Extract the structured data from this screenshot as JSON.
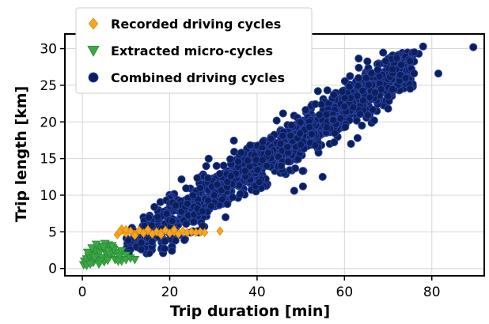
{
  "chart_data": {
    "type": "scatter",
    "xlabel": "Trip duration [min]",
    "ylabel": "Trip length [km]",
    "xlim": [
      -4,
      92
    ],
    "ylim": [
      -1,
      32
    ],
    "xticks": [
      0,
      20,
      40,
      60,
      80
    ],
    "yticks": [
      0,
      5,
      10,
      15,
      20,
      25,
      30
    ],
    "grid": true,
    "legend_position": "top-left",
    "series": [
      {
        "name": "Recorded driving cycles",
        "marker": "diamond",
        "color": "#f5a623",
        "stroke": "#e08a00",
        "points": [
          [
            8,
            4.6
          ],
          [
            9,
            5.2
          ],
          [
            10,
            4.8
          ],
          [
            11,
            5.1
          ],
          [
            12,
            4.7
          ],
          [
            13,
            5.2
          ],
          [
            14,
            4.8
          ],
          [
            15,
            5.1
          ],
          [
            16,
            4.7
          ],
          [
            17,
            5.0
          ],
          [
            18,
            4.9
          ],
          [
            19,
            5.2
          ],
          [
            20,
            4.8
          ],
          [
            21,
            5.0
          ],
          [
            22,
            4.7
          ],
          [
            23,
            5.1
          ],
          [
            24,
            4.9
          ],
          [
            25,
            5.0
          ],
          [
            26,
            4.9
          ],
          [
            27,
            5.0
          ],
          [
            28,
            4.9
          ],
          [
            31.5,
            5.1
          ],
          [
            9,
            5.4
          ],
          [
            12,
            4.5
          ],
          [
            15,
            5.3
          ],
          [
            18,
            4.6
          ],
          [
            21,
            5.3
          ],
          [
            10,
            5.3
          ],
          [
            8.5,
            5.0
          ]
        ]
      },
      {
        "name": "Extracted micro-cycles",
        "marker": "triangle-down",
        "color": "#3aa845",
        "stroke": "#2a8a33",
        "points": [
          [
            0.3,
            0.5
          ],
          [
            0.5,
            1.0
          ],
          [
            0.8,
            0.7
          ],
          [
            1,
            1.3
          ],
          [
            1,
            0.4
          ],
          [
            1.5,
            1.6
          ],
          [
            2,
            1.0
          ],
          [
            2,
            2.0
          ],
          [
            2.5,
            0.8
          ],
          [
            3,
            1.8
          ],
          [
            3,
            2.5
          ],
          [
            3.5,
            1.2
          ],
          [
            4,
            2.2
          ],
          [
            4,
            3.0
          ],
          [
            4.5,
            1.5
          ],
          [
            5,
            2.6
          ],
          [
            5,
            0.9
          ],
          [
            5.5,
            2.0
          ],
          [
            6,
            3.2
          ],
          [
            6,
            1.4
          ],
          [
            6.5,
            2.4
          ],
          [
            7,
            1.8
          ],
          [
            7,
            2.8
          ],
          [
            7.5,
            1.2
          ],
          [
            8,
            2.2
          ],
          [
            8.5,
            1.6
          ],
          [
            9,
            2.4
          ],
          [
            9,
            1.0
          ],
          [
            10,
            1.8
          ],
          [
            10,
            1.2
          ],
          [
            11,
            1.4
          ],
          [
            12,
            1.2
          ],
          [
            1.2,
            2.2
          ],
          [
            2.2,
            2.8
          ],
          [
            3.2,
            3.3
          ],
          [
            4.2,
            1.0
          ],
          [
            5.2,
            3.4
          ],
          [
            6.2,
            2.0
          ],
          [
            3.8,
            0.6
          ],
          [
            2.8,
            1.5
          ],
          [
            1.8,
            0.6
          ],
          [
            7.2,
            2.6
          ],
          [
            8.2,
            1.0
          ],
          [
            5.8,
            1.1
          ],
          [
            4.8,
            2.9
          ],
          [
            6.8,
            3.1
          ]
        ]
      },
      {
        "name": "Combined driving cycles",
        "marker": "circle",
        "color": "#0b1f5c",
        "stroke": "#2e45a8",
        "distribution": {
          "trend_y_per_min": 0.385,
          "duration_range": [
            10,
            76
          ],
          "spread_km": 1.6,
          "count": 1400,
          "seed": 7
        },
        "points": [
          [
            89.5,
            30.2
          ],
          [
            78,
            30.3
          ],
          [
            77,
            29.3
          ],
          [
            81.5,
            26.6
          ],
          [
            70,
            21.8
          ],
          [
            66.8,
            20.2
          ],
          [
            63,
            17.8
          ],
          [
            61.5,
            17.0
          ],
          [
            38.4,
            16.8
          ],
          [
            36.4,
            15.8
          ],
          [
            40.5,
            11.8
          ],
          [
            50.5,
            11.2
          ],
          [
            45.5,
            14.0
          ],
          [
            32,
            9.4
          ],
          [
            34,
            12.6
          ],
          [
            42.2,
            14.0
          ],
          [
            48.5,
            10.6
          ],
          [
            29.5,
            8.5
          ],
          [
            55,
            12.5
          ],
          [
            27.5,
            7.8
          ],
          [
            33.2,
            8.8
          ],
          [
            25.5,
            6.4
          ],
          [
            24.8,
            4.9
          ],
          [
            20.5,
            3.0
          ],
          [
            18.8,
            2.7
          ],
          [
            20.5,
            2.4
          ],
          [
            13.5,
            3.5
          ],
          [
            11.8,
            4.2
          ],
          [
            10.5,
            3.8
          ],
          [
            13.5,
            2.6
          ],
          [
            73,
            27.8
          ],
          [
            75,
            28.3
          ],
          [
            71,
            27.2
          ],
          [
            72,
            28.7
          ],
          [
            68,
            26.2
          ],
          [
            70,
            23.5
          ],
          [
            64,
            19.5
          ],
          [
            62,
            22.0
          ],
          [
            67,
            24.0
          ],
          [
            74,
            26.0
          ],
          [
            76,
            29.5
          ]
        ]
      }
    ]
  }
}
